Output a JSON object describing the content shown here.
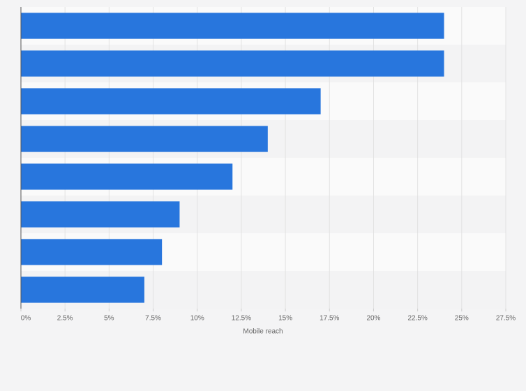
{
  "chart_data": {
    "type": "bar",
    "orientation": "horizontal",
    "x_label": "Mobile reach",
    "categories": [
      null,
      null,
      null,
      null,
      null,
      null,
      null,
      null
    ],
    "values": [
      24,
      24,
      17,
      14,
      12,
      9,
      8,
      7
    ],
    "color": "#2876dd",
    "xlim": [
      0,
      27.5
    ],
    "xticks": [
      {
        "value": 0,
        "label": "0%"
      },
      {
        "value": 2.5,
        "label": "2.5%"
      },
      {
        "value": 5,
        "label": "5%"
      },
      {
        "value": 7.5,
        "label": "7.5%"
      },
      {
        "value": 10,
        "label": "10%"
      },
      {
        "value": 12.5,
        "label": "12.5%"
      },
      {
        "value": 15,
        "label": "15%"
      },
      {
        "value": 17.5,
        "label": "17.5%"
      },
      {
        "value": 20,
        "label": "20%"
      },
      {
        "value": 22.5,
        "label": "22.5%"
      },
      {
        "value": 25,
        "label": "25%"
      },
      {
        "value": 27.5,
        "label": "27.5%"
      }
    ],
    "grid": true
  }
}
